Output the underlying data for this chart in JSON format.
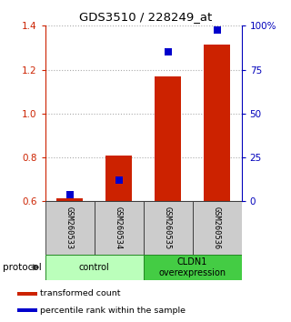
{
  "title": "GDS3510 / 228249_at",
  "samples": [
    "GSM260533",
    "GSM260534",
    "GSM260535",
    "GSM260536"
  ],
  "red_values": [
    0.615,
    0.81,
    1.17,
    1.315
  ],
  "blue_values_pct": [
    3.5,
    12.0,
    85.0,
    97.5
  ],
  "ylim": [
    0.6,
    1.4
  ],
  "y_ticks_left": [
    0.6,
    0.8,
    1.0,
    1.2,
    1.4
  ],
  "y_ticks_right": [
    0,
    25,
    50,
    75,
    100
  ],
  "y_right_labels": [
    "0",
    "25",
    "50",
    "75",
    "100%"
  ],
  "group_labels": [
    "control",
    "CLDN1\noverexpression"
  ],
  "group_colors": [
    "#bbffbb",
    "#44cc44"
  ],
  "protocol_label": "protocol",
  "legend": [
    {
      "color": "#cc2200",
      "label": "transformed count"
    },
    {
      "color": "#0000cc",
      "label": "percentile rank within the sample"
    }
  ],
  "bar_color": "#cc2200",
  "dot_color": "#0000cc",
  "sample_bg_color": "#cccccc",
  "left_axis_color": "#cc2200",
  "right_axis_color": "#0000bb",
  "bar_width": 0.55
}
